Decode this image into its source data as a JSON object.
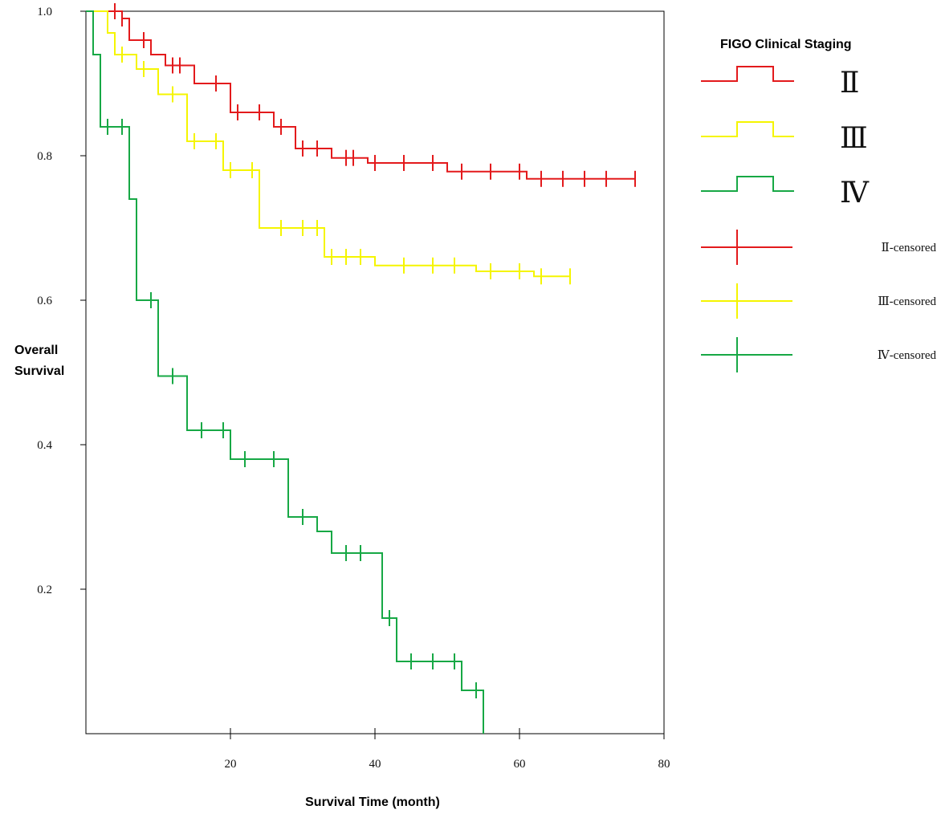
{
  "chart_data": {
    "type": "line",
    "subtype": "kaplan-meier step plot",
    "title": "",
    "xlabel": "Survival Time (month)",
    "ylabel_lines": [
      "Overall",
      "Survival"
    ],
    "xlim": [
      0,
      80
    ],
    "ylim": [
      0,
      1.0
    ],
    "x_ticks": [
      20,
      40,
      60,
      80
    ],
    "y_ticks": [
      0.2,
      0.4,
      0.6,
      0.8,
      1.0
    ],
    "y_tick_labels": [
      "0.2",
      "0.4",
      "0.6",
      "0.8",
      "1.0"
    ],
    "grid": false,
    "legend": {
      "title": "FIGO Clinical Staging",
      "position": "right",
      "step_entries": [
        "Ⅱ",
        "Ⅲ",
        "Ⅳ"
      ],
      "censor_entries": [
        "Ⅱ-censored",
        "Ⅲ-censored",
        "Ⅳ-censored"
      ]
    },
    "series": [
      {
        "name": "Ⅱ",
        "color": "#e31a1c",
        "steps": [
          [
            0,
            1.0
          ],
          [
            5,
            0.99
          ],
          [
            6,
            0.96
          ],
          [
            9,
            0.94
          ],
          [
            11,
            0.925
          ],
          [
            15,
            0.9
          ],
          [
            20,
            0.86
          ],
          [
            26,
            0.84
          ],
          [
            29,
            0.81
          ],
          [
            34,
            0.797
          ],
          [
            39,
            0.79
          ],
          [
            50,
            0.778
          ],
          [
            61,
            0.768
          ],
          [
            76,
            0.768
          ]
        ],
        "censored": [
          [
            4,
            1.0
          ],
          [
            5,
            0.99
          ],
          [
            8,
            0.96
          ],
          [
            12,
            0.925
          ],
          [
            13,
            0.925
          ],
          [
            18,
            0.9
          ],
          [
            21,
            0.86
          ],
          [
            24,
            0.86
          ],
          [
            27,
            0.84
          ],
          [
            30,
            0.81
          ],
          [
            32,
            0.81
          ],
          [
            36,
            0.797
          ],
          [
            37,
            0.797
          ],
          [
            40,
            0.79
          ],
          [
            44,
            0.79
          ],
          [
            48,
            0.79
          ],
          [
            52,
            0.778
          ],
          [
            56,
            0.778
          ],
          [
            60,
            0.778
          ],
          [
            63,
            0.768
          ],
          [
            66,
            0.768
          ],
          [
            69,
            0.768
          ],
          [
            72,
            0.768
          ],
          [
            76,
            0.768
          ]
        ]
      },
      {
        "name": "Ⅲ",
        "color": "#f5f500",
        "steps": [
          [
            0,
            1.0
          ],
          [
            3,
            0.97
          ],
          [
            4,
            0.94
          ],
          [
            7,
            0.92
          ],
          [
            10,
            0.885
          ],
          [
            14,
            0.82
          ],
          [
            19,
            0.78
          ],
          [
            24,
            0.7
          ],
          [
            33,
            0.66
          ],
          [
            40,
            0.648
          ],
          [
            54,
            0.64
          ],
          [
            62,
            0.633
          ],
          [
            67,
            0.633
          ]
        ],
        "censored": [
          [
            5,
            0.94
          ],
          [
            8,
            0.92
          ],
          [
            12,
            0.885
          ],
          [
            15,
            0.82
          ],
          [
            18,
            0.82
          ],
          [
            20,
            0.78
          ],
          [
            23,
            0.78
          ],
          [
            27,
            0.7
          ],
          [
            30,
            0.7
          ],
          [
            32,
            0.7
          ],
          [
            34,
            0.66
          ],
          [
            36,
            0.66
          ],
          [
            38,
            0.66
          ],
          [
            44,
            0.648
          ],
          [
            48,
            0.648
          ],
          [
            51,
            0.648
          ],
          [
            56,
            0.64
          ],
          [
            60,
            0.64
          ],
          [
            63,
            0.633
          ],
          [
            67,
            0.633
          ]
        ]
      },
      {
        "name": "Ⅳ",
        "color": "#17a845",
        "steps": [
          [
            0,
            1.0
          ],
          [
            1,
            0.94
          ],
          [
            2,
            0.84
          ],
          [
            6,
            0.74
          ],
          [
            7,
            0.6
          ],
          [
            10,
            0.495
          ],
          [
            14,
            0.42
          ],
          [
            20,
            0.38
          ],
          [
            28,
            0.3
          ],
          [
            32,
            0.28
          ],
          [
            34,
            0.25
          ],
          [
            41,
            0.16
          ],
          [
            43,
            0.1
          ],
          [
            52,
            0.06
          ],
          [
            55,
            0.0
          ]
        ],
        "censored": [
          [
            3,
            0.84
          ],
          [
            5,
            0.84
          ],
          [
            9,
            0.6
          ],
          [
            12,
            0.495
          ],
          [
            16,
            0.42
          ],
          [
            19,
            0.42
          ],
          [
            22,
            0.38
          ],
          [
            26,
            0.38
          ],
          [
            30,
            0.3
          ],
          [
            36,
            0.25
          ],
          [
            38,
            0.25
          ],
          [
            42,
            0.16
          ],
          [
            45,
            0.1
          ],
          [
            48,
            0.1
          ],
          [
            51,
            0.1
          ],
          [
            54,
            0.06
          ]
        ]
      }
    ]
  }
}
